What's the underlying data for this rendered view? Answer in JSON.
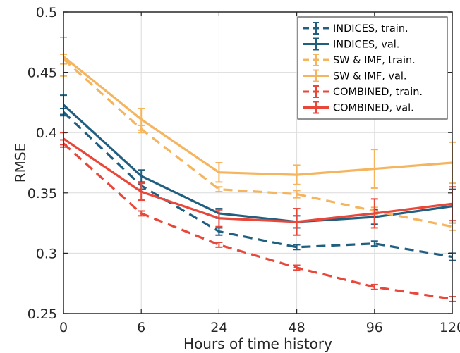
{
  "chart_data": {
    "type": "line",
    "xlabel": "Hours of time history",
    "ylabel": "RMSE",
    "categories": [
      "0",
      "6",
      "24",
      "48",
      "96",
      "120"
    ],
    "ylim": [
      0.25,
      0.5
    ],
    "yticks": [
      "0.25",
      "0.3",
      "0.35",
      "0.4",
      "0.45",
      "0.5"
    ],
    "grid": true,
    "legend_position": "top-right",
    "series": [
      {
        "name": "INDICES, train.",
        "color": "#215f80",
        "dashed": true,
        "values": [
          0.417,
          0.356,
          0.318,
          0.305,
          0.308,
          0.297
        ],
        "errors": [
          0.003,
          0.003,
          0.003,
          0.002,
          0.002,
          0.003
        ]
      },
      {
        "name": "INDICES, val.",
        "color": "#215f80",
        "dashed": false,
        "values": [
          0.423,
          0.364,
          0.333,
          0.326,
          0.33,
          0.339
        ],
        "errors": [
          0.008,
          0.005,
          0.004,
          0.005,
          0.006,
          0.014
        ]
      },
      {
        "name": "SW & IMF, train.",
        "color": "#f5b45e",
        "dashed": true,
        "values": [
          0.461,
          0.403,
          0.353,
          0.349,
          0.335,
          0.322
        ],
        "errors": [
          0.004,
          0.003,
          0.002,
          0.003,
          0.003,
          0.003
        ]
      },
      {
        "name": "SW & IMF, val.",
        "color": "#f5b45e",
        "dashed": false,
        "values": [
          0.463,
          0.411,
          0.367,
          0.365,
          0.37,
          0.375
        ],
        "errors": [
          0.016,
          0.009,
          0.008,
          0.008,
          0.016,
          0.017
        ]
      },
      {
        "name": "COMBINED, train.",
        "color": "#e8473a",
        "dashed": true,
        "values": [
          0.391,
          0.333,
          0.307,
          0.288,
          0.272,
          0.262
        ],
        "errors": [
          0.003,
          0.002,
          0.002,
          0.002,
          0.002,
          0.002
        ]
      },
      {
        "name": "COMBINED, val.",
        "color": "#e8473a",
        "dashed": false,
        "values": [
          0.395,
          0.351,
          0.329,
          0.326,
          0.333,
          0.341
        ],
        "errors": [
          0.005,
          0.007,
          0.007,
          0.011,
          0.012,
          0.014
        ]
      }
    ]
  }
}
